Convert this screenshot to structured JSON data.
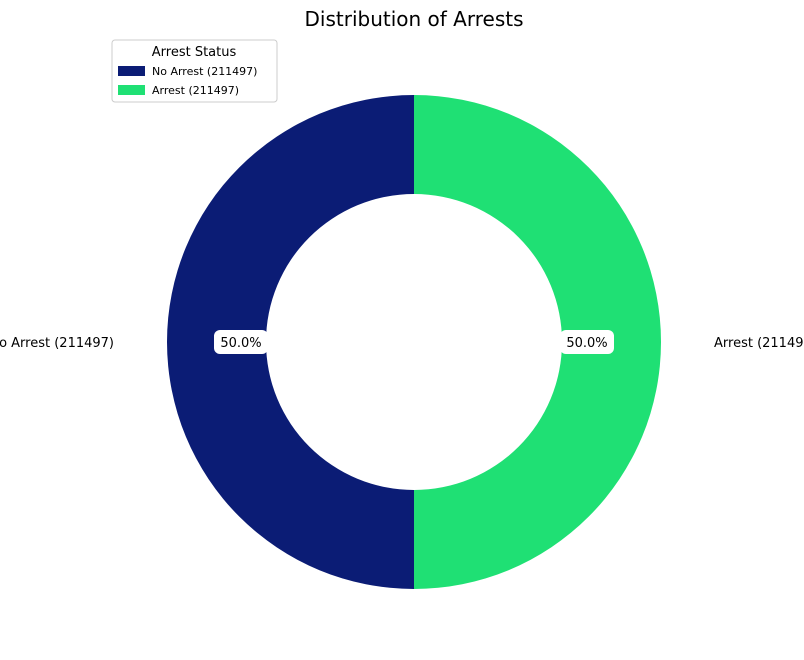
{
  "chart_data": {
    "type": "pie",
    "donut": true,
    "title": "Distribution of Arrests",
    "legend_title": "Arrest Status",
    "legend_position": "top-left",
    "categories": [
      "No Arrest (211497)",
      "Arrest (211497)"
    ],
    "values": [
      211497,
      211497
    ],
    "percent_labels": [
      "50.0%",
      "50.0%"
    ],
    "colors": [
      "#0b1c75",
      "#1fe074"
    ]
  }
}
